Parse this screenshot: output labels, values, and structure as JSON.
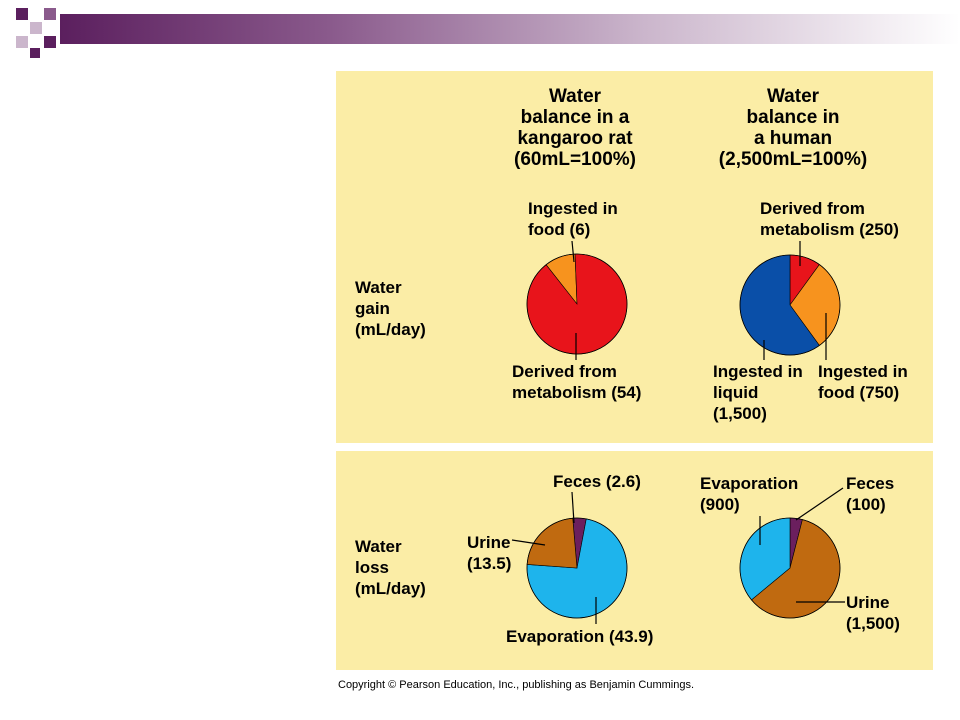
{
  "copyright": "Copyright © Pearson Education, Inc., publishing as Benjamin Cummings.",
  "headers": {
    "rat": "Water\nbalance in a\nkangaroo rat\n(60mL=100%)",
    "human": "Water\nbalance in\na human\n(2,500mL=100%)"
  },
  "rows": {
    "gain": "Water\ngain\n(mL/day)",
    "loss": "Water\nloss\n(mL/day)"
  },
  "colors": {
    "panel": "#fbeda6",
    "red": "#e8141b",
    "orange": "#f7931e",
    "blue": "#0a4fa8",
    "brown": "#c06a10",
    "cyan": "#1eb4ec",
    "purple": "#6b1f5e"
  },
  "chart_data": [
    {
      "type": "pie",
      "title": "Water balance in a kangaroo rat (60mL=100%) — Water gain (mL/day)",
      "slices": [
        {
          "label": "Ingested in food (6)",
          "value": 6,
          "color": "#f7931e"
        },
        {
          "label": "Derived from metabolism (54)",
          "value": 54,
          "color": "#e8141b"
        }
      ]
    },
    {
      "type": "pie",
      "title": "Water balance in a human (2,500mL=100%) — Water gain (mL/day)",
      "slices": [
        {
          "label": "Derived from metabolism (250)",
          "value": 250,
          "color": "#e8141b"
        },
        {
          "label": "Ingested in food (750)",
          "value": 750,
          "color": "#f7931e"
        },
        {
          "label": "Ingested in liquid (1,500)",
          "value": 1500,
          "color": "#0a4fa8"
        }
      ]
    },
    {
      "type": "pie",
      "title": "Water balance in a kangaroo rat (60mL=100%) — Water loss (mL/day)",
      "slices": [
        {
          "label": "Feces (2.6)",
          "value": 2.6,
          "color": "#6b1f5e"
        },
        {
          "label": "Evaporation (43.9)",
          "value": 43.9,
          "color": "#1eb4ec"
        },
        {
          "label": "Urine (13.5)",
          "value": 13.5,
          "color": "#c06a10"
        }
      ]
    },
    {
      "type": "pie",
      "title": "Water balance in a human (2,500mL=100%) — Water loss (mL/day)",
      "slices": [
        {
          "label": "Feces (100)",
          "value": 100,
          "color": "#6b1f5e"
        },
        {
          "label": "Urine (1,500)",
          "value": 1500,
          "color": "#c06a10"
        },
        {
          "label": "Evaporation (900)",
          "value": 900,
          "color": "#1eb4ec"
        }
      ]
    }
  ]
}
